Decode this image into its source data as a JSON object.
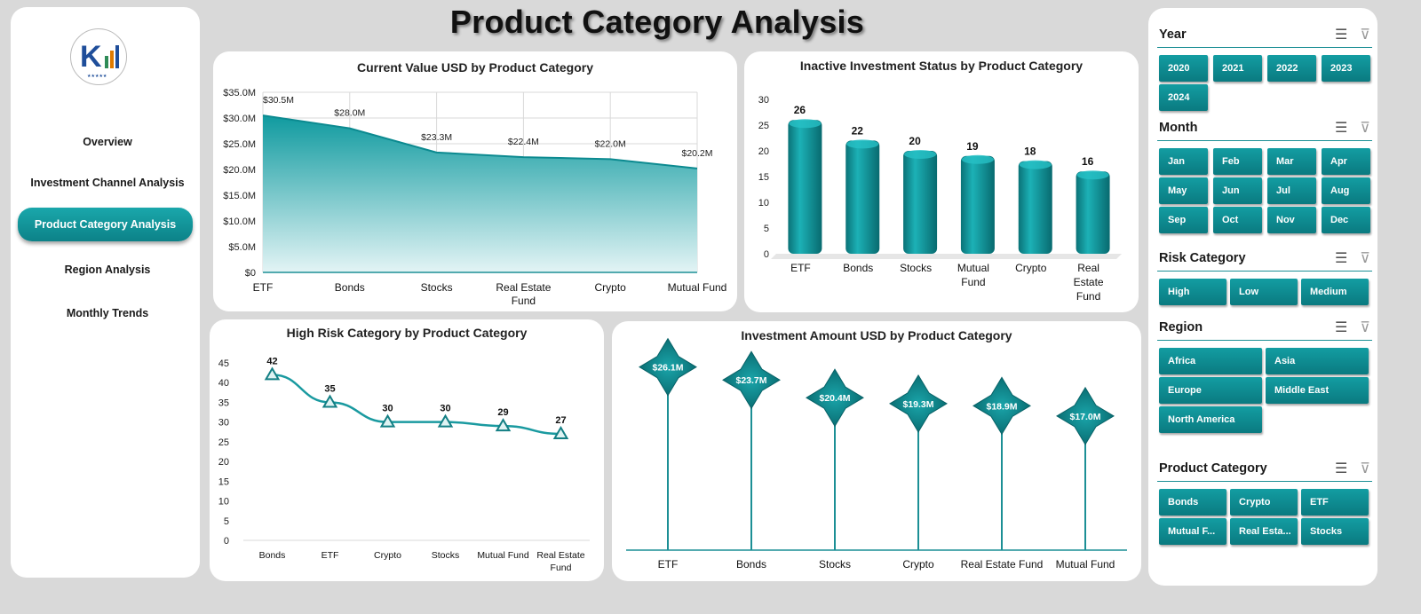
{
  "page_title": "Product Category  Analysis",
  "nav": {
    "items": [
      "Overview",
      "Investment Channel Analysis",
      "Product Category  Analysis",
      "Region  Analysis",
      "Monthly Trends"
    ],
    "active_index": 2
  },
  "colors": {
    "accent": "#0f8d93",
    "accent_dark": "#0a7a80",
    "panel": "#ffffff",
    "background": "#d9d9d9"
  },
  "charts": {
    "current_value": {
      "title": "Current Value USD by Product Category",
      "type": "area",
      "categories": [
        "ETF",
        "Bonds",
        "Stocks",
        "Real Estate Fund",
        "Crypto",
        "Mutual Fund"
      ],
      "values": [
        30.5,
        28.0,
        23.3,
        22.4,
        22.0,
        20.2
      ],
      "labels": [
        "$30.5M",
        "$28.0M",
        "$23.3M",
        "$22.4M",
        "$22.0M",
        "$20.2M"
      ],
      "yticks": [
        "$0",
        "$5.0M",
        "$10.0M",
        "$15.0M",
        "$20.0M",
        "$25.0M",
        "$30.0M",
        "$35.0M"
      ],
      "ylim": [
        0,
        35
      ]
    },
    "inactive": {
      "title": "Inactive Investment Status by Product Category",
      "type": "bar",
      "categories": [
        "ETF",
        "Bonds",
        "Stocks",
        "Mutual Fund",
        "Crypto",
        "Real Estate Fund"
      ],
      "values": [
        26,
        22,
        20,
        19,
        18,
        16
      ],
      "yticks": [
        "0",
        "5",
        "10",
        "15",
        "20",
        "25",
        "30"
      ],
      "ylim": [
        0,
        30
      ]
    },
    "high_risk": {
      "title": "High Risk Category by Product Category",
      "type": "line",
      "categories": [
        "Bonds",
        "ETF",
        "Crypto",
        "Stocks",
        "Mutual Fund",
        "Real Estate Fund"
      ],
      "values": [
        42,
        35,
        30,
        30,
        29,
        27
      ],
      "yticks": [
        "0",
        "5",
        "10",
        "15",
        "20",
        "25",
        "30",
        "35",
        "40",
        "45"
      ],
      "ylim": [
        0,
        45
      ]
    },
    "investment_amount": {
      "title": "Investment Amount USD by Product Category",
      "type": "lollipop",
      "categories": [
        "ETF",
        "Bonds",
        "Stocks",
        "Crypto",
        "Real Estate Fund",
        "Mutual Fund"
      ],
      "values": [
        26.1,
        23.7,
        20.4,
        19.3,
        18.9,
        17.0
      ],
      "labels": [
        "$26.1M",
        "$23.7M",
        "$20.4M",
        "$19.3M",
        "$18.9M",
        "$17.0M"
      ]
    }
  },
  "slicers": [
    {
      "title": "Year",
      "items": [
        "2020",
        "2021",
        "2022",
        "2023",
        "2024"
      ]
    },
    {
      "title": "Month",
      "items": [
        "Jan",
        "Feb",
        "Mar",
        "Apr",
        "May",
        "Jun",
        "Jul",
        "Aug",
        "Sep",
        "Oct",
        "Nov",
        "Dec"
      ]
    },
    {
      "title": "Risk Category",
      "items": [
        "High",
        "Low",
        "Medium"
      ]
    },
    {
      "title": "Region",
      "items": [
        "Africa",
        "Asia",
        "Europe",
        "Middle East",
        "North America"
      ]
    },
    {
      "title": "Product Category",
      "items": [
        "Bonds",
        "Crypto",
        "ETF",
        "Mutual F...",
        "Real Esta...",
        "Stocks"
      ]
    }
  ],
  "slicer_icons": [
    "multi-select-icon",
    "clear-filter-icon"
  ]
}
